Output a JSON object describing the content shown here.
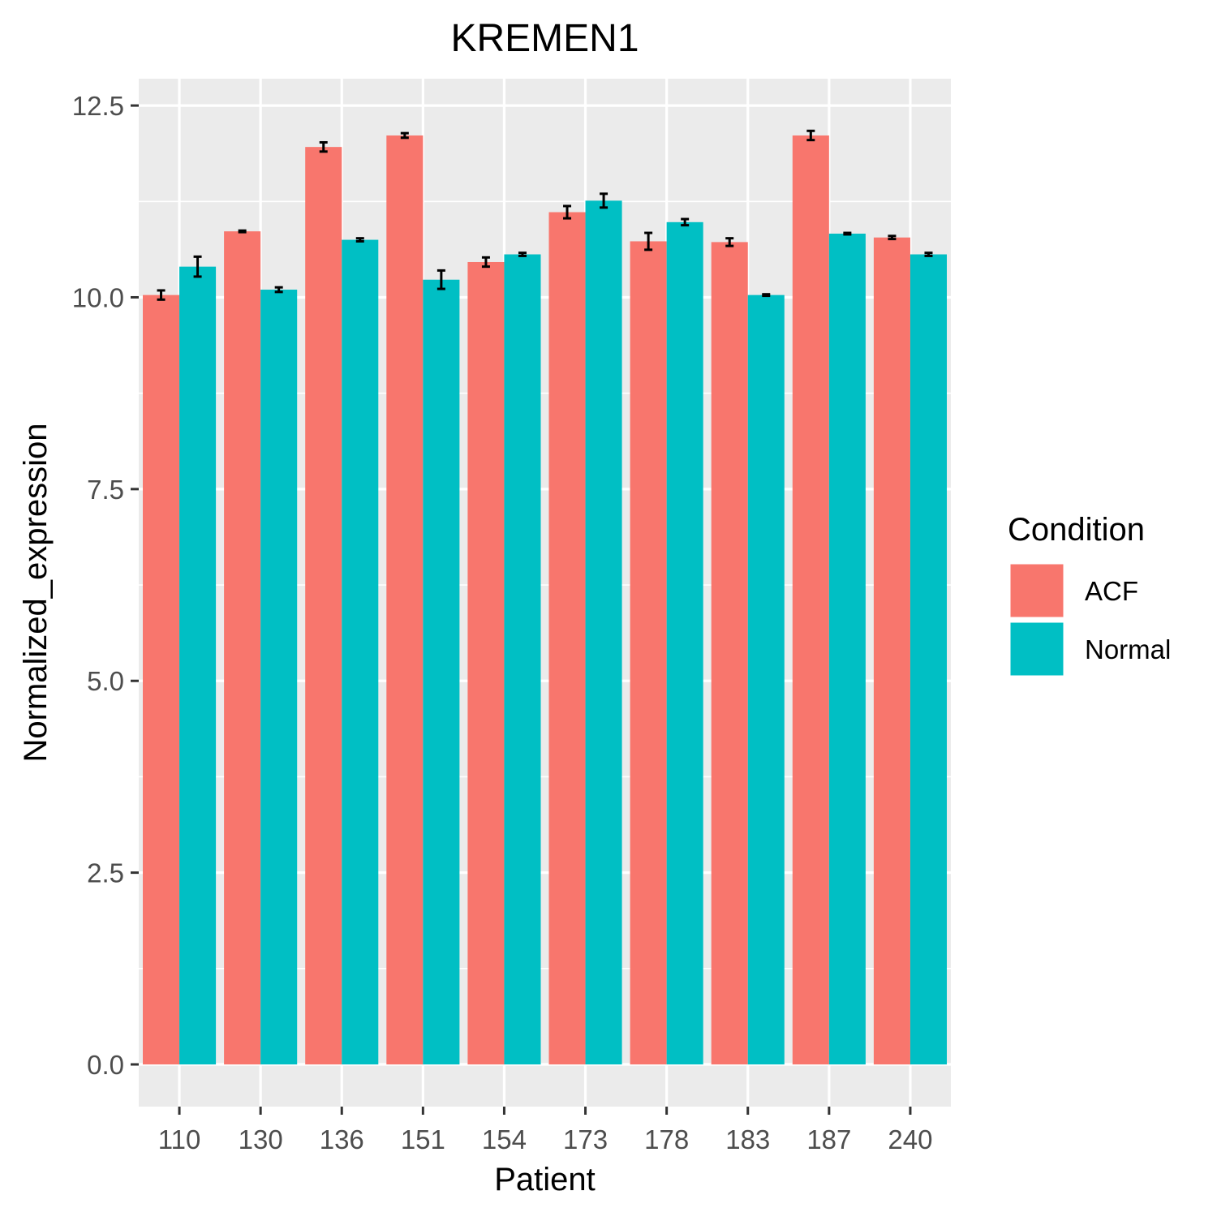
{
  "chart_data": {
    "type": "bar",
    "title": "KREMEN1",
    "xlabel": "Patient",
    "ylabel": "Normalized_expression",
    "categories": [
      "110",
      "130",
      "136",
      "151",
      "154",
      "173",
      "178",
      "183",
      "187",
      "240"
    ],
    "series": [
      {
        "name": "ACF",
        "color": "#F8766D",
        "values": [
          10.03,
          10.86,
          11.96,
          12.11,
          10.46,
          11.11,
          10.73,
          10.72,
          12.11,
          10.78
        ],
        "error": [
          0.06,
          0.01,
          0.06,
          0.03,
          0.06,
          0.08,
          0.11,
          0.05,
          0.06,
          0.02
        ]
      },
      {
        "name": "Normal",
        "color": "#00BFC4",
        "values": [
          10.4,
          10.1,
          10.75,
          10.23,
          10.56,
          11.26,
          10.98,
          10.03,
          10.83,
          10.56
        ],
        "error": [
          0.13,
          0.03,
          0.02,
          0.12,
          0.02,
          0.09,
          0.04,
          0.01,
          0.01,
          0.02
        ]
      }
    ],
    "ylim": [
      -0.55,
      12.85
    ],
    "yticks": [
      "0.0",
      "2.5",
      "5.0",
      "7.5",
      "10.0",
      "12.5"
    ],
    "ytick_values": [
      0,
      2.5,
      5,
      7.5,
      10,
      12.5
    ],
    "grid": true,
    "legend": {
      "title": "Condition",
      "position": "right",
      "items": [
        "ACF",
        "Normal"
      ]
    },
    "panel_background": "#EBEBEB"
  }
}
